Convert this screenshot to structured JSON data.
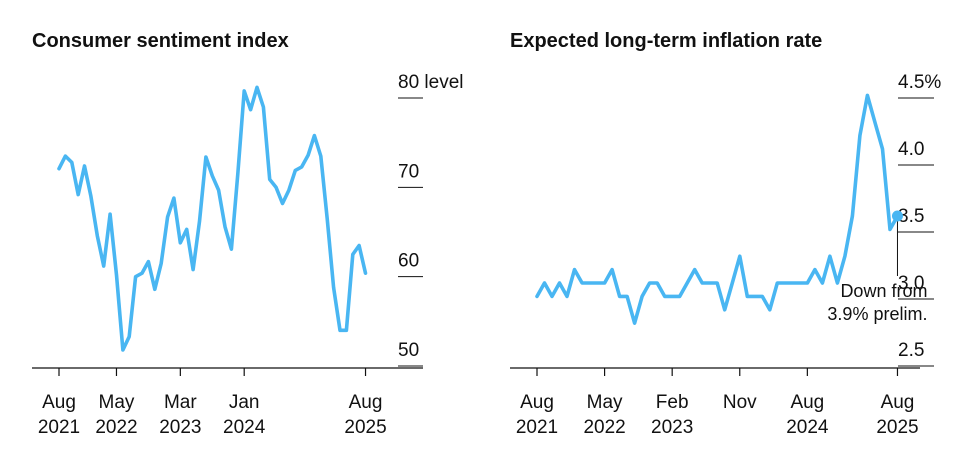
{
  "colors": {
    "line": "#49b6f2",
    "axis": "#111111"
  },
  "chart_data": [
    {
      "type": "line",
      "title": "Consumer sentiment index",
      "y_unit_label": "level",
      "ylim": [
        48,
        82
      ],
      "yticks": [
        {
          "value": 80,
          "label": "80"
        },
        {
          "value": 70,
          "label": "70"
        },
        {
          "value": 60,
          "label": "60"
        },
        {
          "value": 50,
          "label": "50"
        }
      ],
      "xticks": [
        {
          "date": "2021-08",
          "month": "Aug",
          "year": "2021"
        },
        {
          "date": "2022-05",
          "month": "May",
          "year": "2022"
        },
        {
          "date": "2023-03",
          "month": "Mar",
          "year": "2023"
        },
        {
          "date": "2024-01",
          "month": "Jan",
          "year": "2024"
        },
        {
          "date": "2025-08",
          "month": "Aug",
          "year": "2025"
        }
      ],
      "xrange": [
        "2021-08",
        "2026-05"
      ],
      "grid": false,
      "series": [
        {
          "x": [
            "2021-08",
            "2021-09",
            "2021-10",
            "2021-11",
            "2021-12",
            "2022-01",
            "2022-02",
            "2022-03",
            "2022-04",
            "2022-05",
            "2022-06",
            "2022-07",
            "2022-08",
            "2022-09",
            "2022-10",
            "2022-11",
            "2022-12",
            "2023-01",
            "2023-02",
            "2023-03",
            "2023-04",
            "2023-05",
            "2023-06",
            "2023-07",
            "2023-08",
            "2023-09",
            "2023-10",
            "2023-11",
            "2023-12",
            "2024-01",
            "2024-02",
            "2024-03",
            "2024-04",
            "2024-05",
            "2024-06",
            "2024-07",
            "2024-08",
            "2024-09",
            "2024-10",
            "2024-11",
            "2024-12",
            "2025-01",
            "2025-02",
            "2025-03",
            "2025-04",
            "2025-05",
            "2025-06",
            "2025-07",
            "2025-08"
          ],
          "values": [
            70.3,
            71.7,
            71.0,
            67.4,
            70.6,
            67.2,
            62.8,
            59.4,
            65.2,
            58.4,
            50.0,
            51.5,
            58.2,
            58.6,
            59.9,
            56.8,
            59.7,
            64.9,
            67.0,
            62.0,
            63.5,
            59.0,
            64.4,
            71.6,
            69.5,
            67.9,
            63.8,
            61.3,
            69.7,
            79.0,
            76.9,
            79.4,
            77.2,
            69.1,
            68.2,
            66.4,
            67.9,
            70.1,
            70.5,
            71.8,
            74.0,
            71.7,
            64.7,
            57.0,
            52.2,
            52.2,
            60.7,
            61.7,
            58.6
          ]
        }
      ]
    },
    {
      "type": "line",
      "title": "Expected long-term inflation rate",
      "ylim": [
        2.35,
        4.75
      ],
      "yticks": [
        {
          "value": 4.5,
          "label": "4.5%"
        },
        {
          "value": 4.0,
          "label": "4.0"
        },
        {
          "value": 3.5,
          "label": "3.5"
        },
        {
          "value": 3.0,
          "label": "3.0"
        },
        {
          "value": 2.5,
          "label": "2.5"
        }
      ],
      "xticks": [
        {
          "date": "2021-08",
          "month": "Aug",
          "year": "2021"
        },
        {
          "date": "2022-05",
          "month": "May",
          "year": "2022"
        },
        {
          "date": "2023-02",
          "month": "Feb",
          "year": "2023"
        },
        {
          "date": "2023-11",
          "month": "Nov",
          "year": ""
        },
        {
          "date": "2024-08",
          "month": "Aug",
          "year": "2024"
        },
        {
          "date": "2025-08",
          "month": "Aug",
          "year": "2025"
        }
      ],
      "xrange": [
        "2021-08",
        "2025-11"
      ],
      "grid": false,
      "annotation": {
        "date": "2025-08",
        "lines": [
          "Down from",
          "3.9% prelim."
        ]
      },
      "series": [
        {
          "x": [
            "2021-08",
            "2021-09",
            "2021-10",
            "2021-11",
            "2021-12",
            "2022-01",
            "2022-02",
            "2022-03",
            "2022-04",
            "2022-05",
            "2022-06",
            "2022-07",
            "2022-08",
            "2022-09",
            "2022-10",
            "2022-11",
            "2022-12",
            "2023-01",
            "2023-02",
            "2023-03",
            "2023-04",
            "2023-05",
            "2023-06",
            "2023-07",
            "2023-08",
            "2023-09",
            "2023-10",
            "2023-11",
            "2023-12",
            "2024-01",
            "2024-02",
            "2024-03",
            "2024-04",
            "2024-05",
            "2024-06",
            "2024-07",
            "2024-08",
            "2024-09",
            "2024-10",
            "2024-11",
            "2024-12",
            "2025-01",
            "2025-02",
            "2025-03",
            "2025-04",
            "2025-05",
            "2025-06",
            "2025-07",
            "2025-08"
          ],
          "values": [
            2.9,
            3.0,
            2.9,
            3.0,
            2.9,
            3.1,
            3.0,
            3.0,
            3.0,
            3.0,
            3.1,
            2.9,
            2.9,
            2.7,
            2.9,
            3.0,
            3.0,
            2.9,
            2.9,
            2.9,
            3.0,
            3.1,
            3.0,
            3.0,
            3.0,
            2.8,
            3.0,
            3.2,
            2.9,
            2.9,
            2.9,
            2.8,
            3.0,
            3.0,
            3.0,
            3.0,
            3.0,
            3.1,
            3.0,
            3.2,
            3.0,
            3.2,
            3.5,
            4.1,
            4.4,
            4.2,
            4.0,
            3.4,
            3.5
          ]
        }
      ]
    }
  ]
}
